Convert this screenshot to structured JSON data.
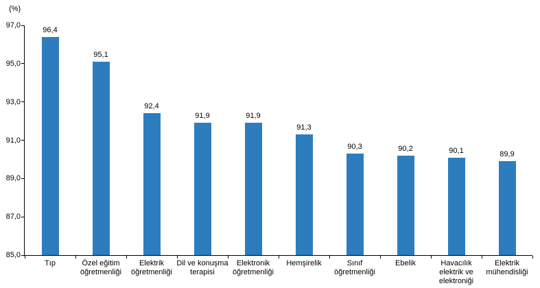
{
  "chart_data": {
    "type": "bar",
    "title": "",
    "xlabel": "",
    "ylabel": "(%)",
    "ylim": [
      85.0,
      97.0
    ],
    "ytick_step": 2.0,
    "ytick_labels": [
      "85,0",
      "87,0",
      "89,0",
      "91,0",
      "93,0",
      "95,0",
      "97,0"
    ],
    "grid": false,
    "legend": false,
    "bar_color": "#2d7dbe",
    "categories": [
      "Tıp",
      "Özel eğitim öğretmenliği",
      "Elektrik öğretmenliği",
      "Dil ve konuşma terapisi",
      "Elektronik öğretmenliği",
      "Hemşirelik",
      "Sınıf öğretmenliği",
      "Ebelik",
      "Havacılık elektrik ve elektroniği",
      "Elektrik mühendisliği"
    ],
    "category_lines": [
      [
        "Tıp"
      ],
      [
        "Özel eğitim",
        "öğretmenliği"
      ],
      [
        "Elektrik",
        "öğretmenliği"
      ],
      [
        "Dil ve konuşma",
        "terapisi"
      ],
      [
        "Elektronik",
        "öğretmenliği"
      ],
      [
        "Hemşirelik"
      ],
      [
        "Sınıf",
        "öğretmenliği"
      ],
      [
        "Ebelik"
      ],
      [
        "Havacılık",
        "elektrik ve",
        "elektroniği"
      ],
      [
        "Elektrik",
        "mühendisliği"
      ]
    ],
    "values": [
      96.4,
      95.1,
      92.4,
      91.9,
      91.9,
      91.3,
      90.3,
      90.2,
      90.1,
      89.9
    ],
    "value_labels": [
      "96,4",
      "95,1",
      "92,4",
      "91,9",
      "91,9",
      "91,3",
      "90,3",
      "90,2",
      "90,1",
      "89,9"
    ]
  }
}
